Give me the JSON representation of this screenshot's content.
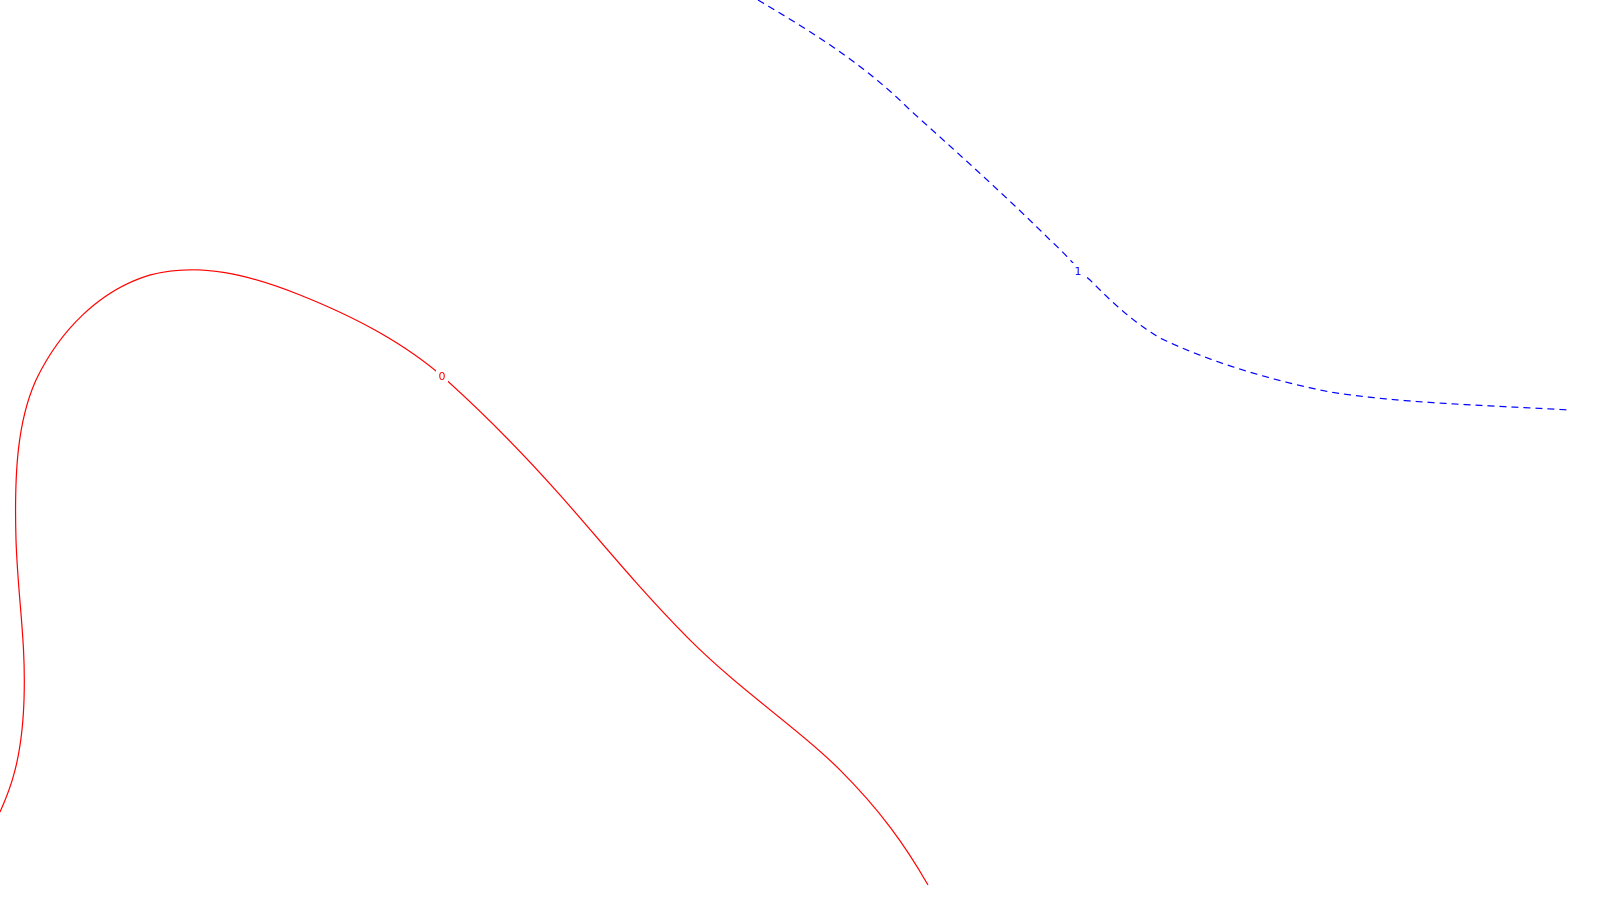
{
  "curves": [
    {
      "label": "0",
      "color": "#ff0000",
      "style": "solid"
    },
    {
      "label": "1",
      "color": "#0000ff",
      "style": "dashed"
    }
  ]
}
